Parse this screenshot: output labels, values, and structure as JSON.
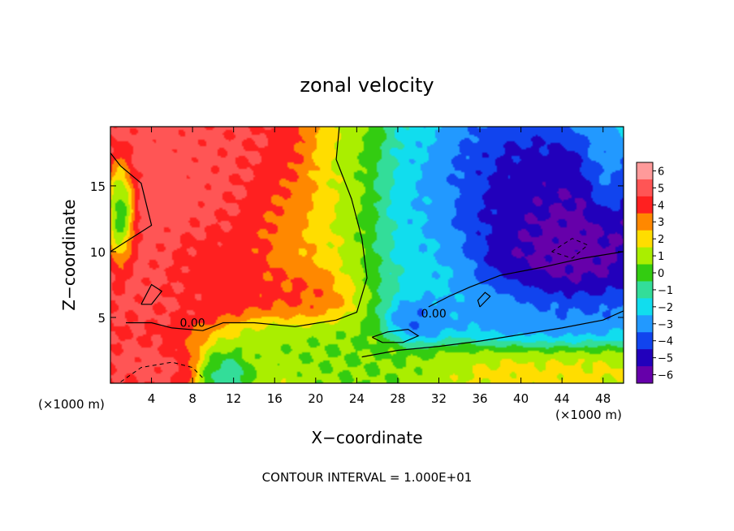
{
  "chart_data": {
    "type": "heatmap",
    "title": "zonal velocity",
    "xlabel": "X−coordinate",
    "ylabel": "Z−coordinate",
    "x_unit_left": "(×1000 m)",
    "x_unit_right": "(×1000 m)",
    "footer": "CONTOUR INTERVAL = 1.000E+01",
    "contour_label": "0.00",
    "xlim": [
      0,
      50
    ],
    "ylim": [
      0,
      19.5
    ],
    "x_ticks": [
      4,
      8,
      12,
      16,
      20,
      24,
      28,
      32,
      36,
      40,
      44,
      48
    ],
    "y_ticks": [
      5,
      10,
      15
    ],
    "colorbar": {
      "levels": [
        6,
        5,
        4,
        3,
        2,
        1,
        0,
        -1,
        -2,
        -3,
        -4,
        -5,
        -6
      ],
      "labels": [
        "6",
        "5",
        "4",
        "3",
        "2",
        "1",
        "0",
        "−1",
        "−2",
        "−3",
        "−4",
        "−5",
        "−6"
      ],
      "colors": [
        "#ff9a9a",
        "#ff5555",
        "#ff2020",
        "#ff8800",
        "#ffdd00",
        "#aaee00",
        "#33cc11",
        "#33dd99",
        "#11ddee",
        "#2299ff",
        "#1144ee",
        "#2200bb",
        "#6600aa"
      ]
    },
    "blobs": [
      {
        "x": 6,
        "y": 13,
        "rx": 14,
        "ry": 13,
        "v": 5.2
      },
      {
        "x": 13,
        "y": 17,
        "rx": 8,
        "ry": 6,
        "v": 4.6
      },
      {
        "x": 18,
        "y": 12,
        "rx": 6,
        "ry": 6,
        "v": 2.5
      },
      {
        "x": 19,
        "y": 7,
        "rx": 5,
        "ry": 2.5,
        "v": 4
      },
      {
        "x": 10,
        "y": 9,
        "rx": 6,
        "ry": 4,
        "v": 3.5
      },
      {
        "x": 23,
        "y": 14,
        "rx": 5,
        "ry": 9,
        "v": 1
      },
      {
        "x": 16,
        "y": 3,
        "rx": 9,
        "ry": 2.5,
        "v": 0.3
      },
      {
        "x": 30,
        "y": 13,
        "rx": 7,
        "ry": 8,
        "v": -2
      },
      {
        "x": 38,
        "y": 14,
        "rx": 10,
        "ry": 6,
        "v": -5
      },
      {
        "x": 44,
        "y": 11,
        "rx": 8,
        "ry": 6,
        "v": -6.3
      },
      {
        "x": 40,
        "y": 5,
        "rx": 10,
        "ry": 3,
        "v": -3
      },
      {
        "x": 30,
        "y": 4.5,
        "rx": 3,
        "ry": 2,
        "v": -4
      },
      {
        "x": 27,
        "y": 1.5,
        "rx": 9,
        "ry": 2.5,
        "v": 0.5
      },
      {
        "x": 40,
        "y": 1.2,
        "rx": 11,
        "ry": 2.2,
        "v": 2
      },
      {
        "x": 4,
        "y": 1.5,
        "rx": 6,
        "ry": 2,
        "v": 5
      },
      {
        "x": 11,
        "y": 1,
        "rx": 3,
        "ry": 2,
        "v": -2.5
      },
      {
        "x": 1,
        "y": 13,
        "rx": 1.5,
        "ry": 4,
        "v": -4
      },
      {
        "x": 48,
        "y": 16,
        "rx": 2,
        "ry": 4,
        "v": -3
      }
    ],
    "zero_contours": [
      [
        [
          0,
          17.5
        ],
        [
          1,
          16.5
        ],
        [
          3,
          15.2
        ],
        [
          4,
          12
        ],
        [
          1,
          10.5
        ],
        [
          0,
          10
        ]
      ],
      [
        [
          1.5,
          4.6
        ],
        [
          4,
          4.6
        ],
        [
          6,
          4.2
        ],
        [
          9,
          4
        ],
        [
          11,
          4.6
        ],
        [
          14,
          4.6
        ],
        [
          18,
          4.3
        ],
        [
          22,
          4.8
        ],
        [
          24,
          5.4
        ],
        [
          25,
          8
        ],
        [
          24.5,
          11
        ],
        [
          23.5,
          14
        ],
        [
          22,
          17
        ],
        [
          22.3,
          19.5
        ]
      ],
      [
        [
          24.5,
          2
        ],
        [
          28,
          2.5
        ],
        [
          32,
          2.8
        ],
        [
          36,
          3.2
        ],
        [
          40,
          3.7
        ],
        [
          44,
          4.2
        ],
        [
          48,
          4.8
        ],
        [
          50,
          5.5
        ]
      ],
      [
        [
          31,
          5.8
        ],
        [
          33,
          6.6
        ],
        [
          35,
          7.3
        ],
        [
          38,
          8.2
        ],
        [
          42,
          8.8
        ],
        [
          46,
          9.5
        ],
        [
          50,
          10
        ]
      ],
      [
        [
          3,
          6
        ],
        [
          4,
          7.5
        ],
        [
          5,
          7
        ],
        [
          4,
          6
        ],
        [
          3,
          6
        ]
      ],
      [
        [
          36,
          5.8
        ],
        [
          37,
          6.6
        ],
        [
          36.5,
          6.9
        ],
        [
          35.8,
          6.3
        ],
        [
          36,
          5.8
        ]
      ],
      [
        [
          25.5,
          3.5
        ],
        [
          27,
          3.9
        ],
        [
          29,
          4.1
        ],
        [
          30,
          3.6
        ],
        [
          28.5,
          3.1
        ],
        [
          26.5,
          3.1
        ],
        [
          25.5,
          3.5
        ]
      ]
    ],
    "neg_contours": [
      [
        [
          1,
          0.1
        ],
        [
          3,
          1.2
        ],
        [
          6,
          1.6
        ],
        [
          8,
          1.2
        ],
        [
          9,
          0.4
        ]
      ],
      [
        [
          43,
          10
        ],
        [
          45,
          11
        ],
        [
          46.5,
          10.5
        ],
        [
          45,
          9.5
        ],
        [
          43,
          10
        ]
      ]
    ],
    "zero_label_positions": [
      [
        8,
        4.6
      ],
      [
        31.5,
        5.3
      ]
    ]
  }
}
